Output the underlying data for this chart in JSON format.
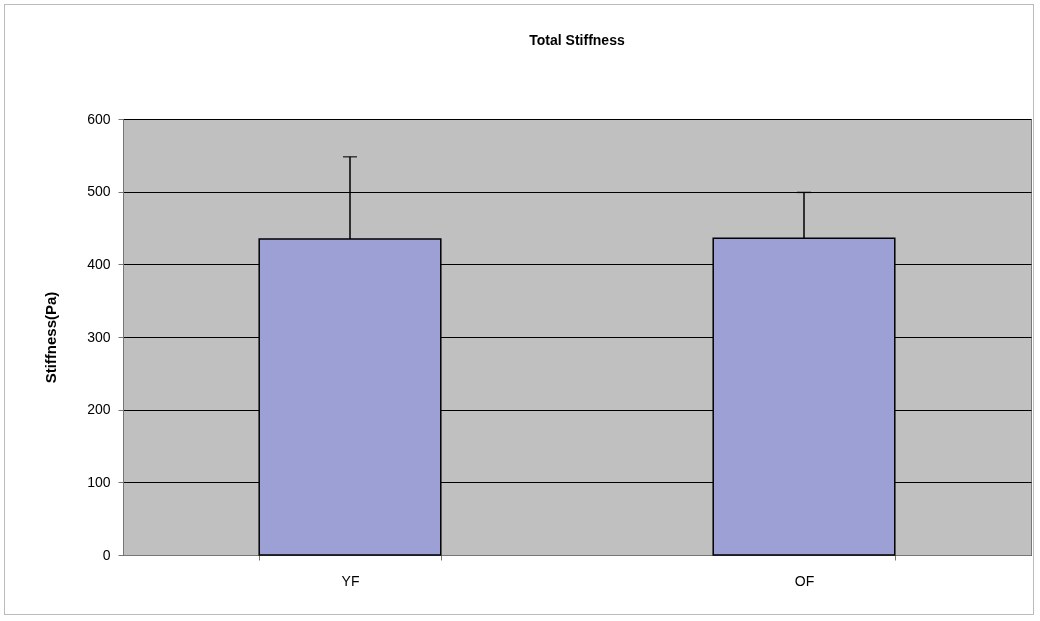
{
  "chart_data": {
    "type": "bar",
    "title": "Total Stiffness",
    "ylabel": "Stiffness(Pa)",
    "categories": [
      "YF",
      "OF"
    ],
    "values": [
      435,
      436
    ],
    "color": "#9da0d4",
    "errors": [
      [
        435,
        548
      ],
      [
        436,
        499
      ]
    ],
    "ylim": [
      0,
      600
    ],
    "yticks": [
      0,
      100,
      200,
      300,
      400,
      500,
      600
    ],
    "grid": "y"
  }
}
